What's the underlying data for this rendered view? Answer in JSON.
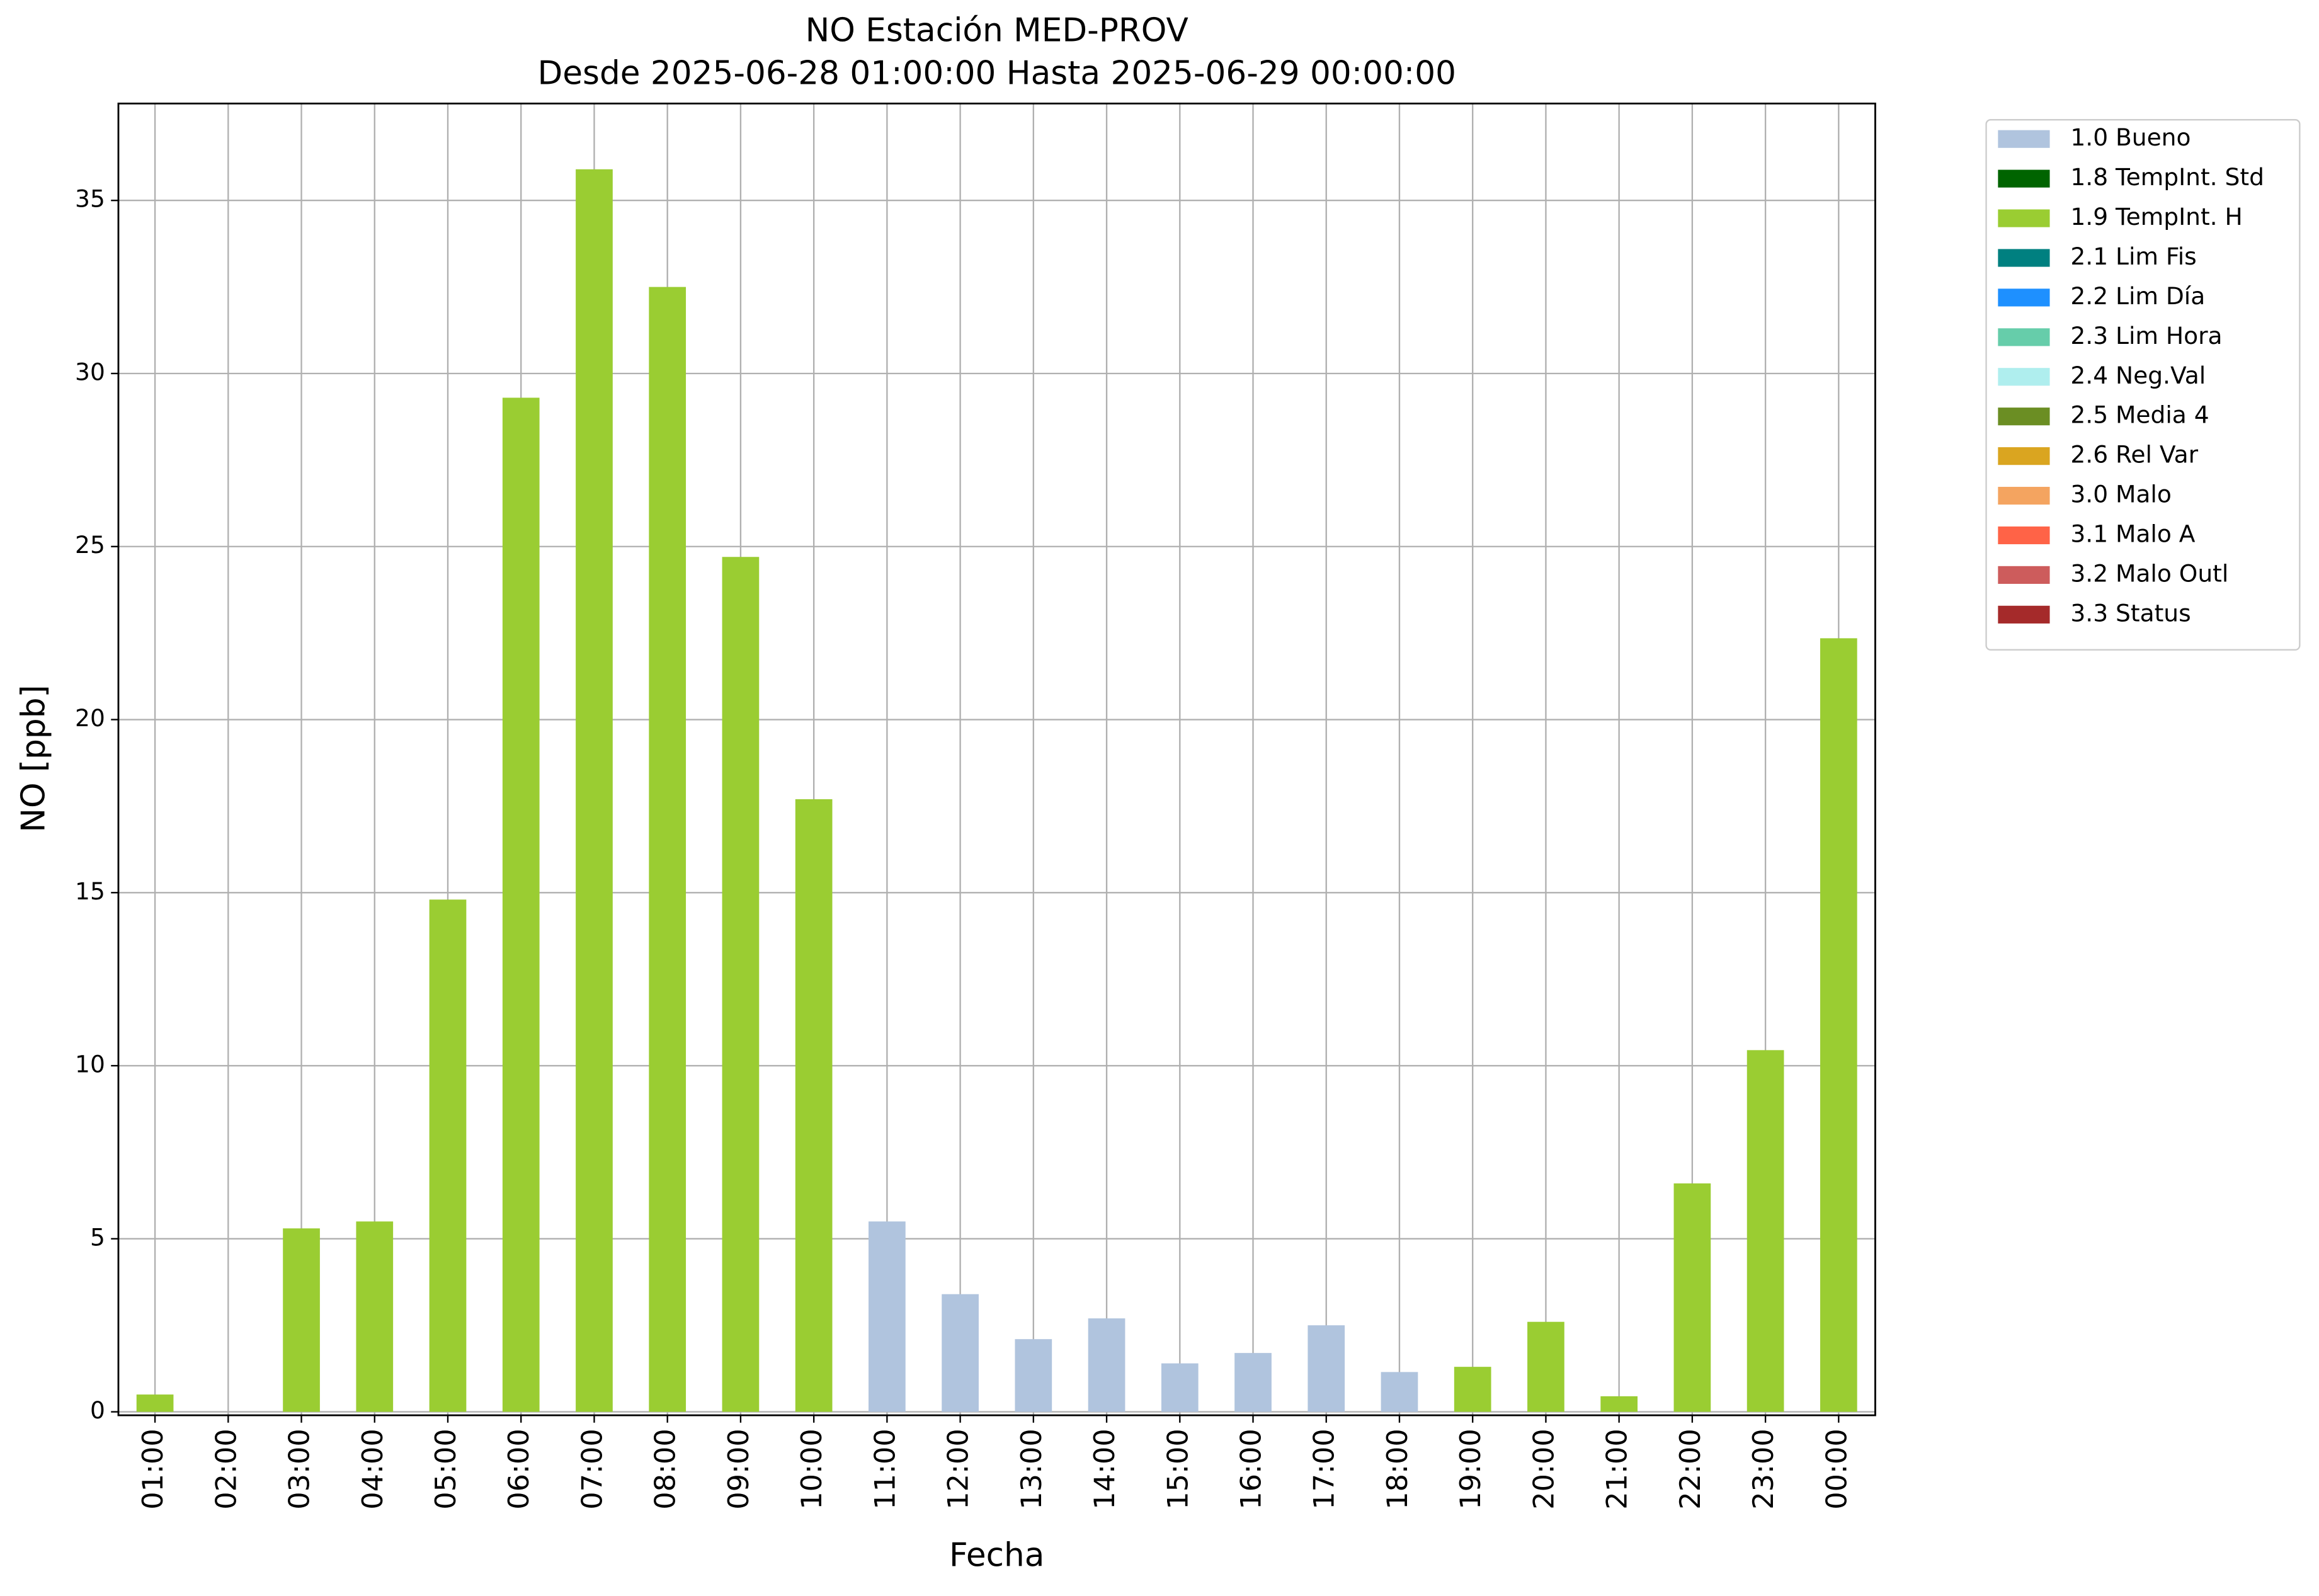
{
  "chart_data": {
    "type": "bar",
    "stacked": true,
    "title": "NO Estación MED-PROV",
    "subtitle": "Desde 2025-06-28 01:00:00 Hasta 2025-06-29 00:00:00",
    "x_label": "Fecha",
    "y_label": "NO [ppb]",
    "categories": [
      "01:00",
      "02:00",
      "03:00",
      "04:00",
      "05:00",
      "06:00",
      "07:00",
      "08:00",
      "09:00",
      "10:00",
      "11:00",
      "12:00",
      "13:00",
      "14:00",
      "15:00",
      "16:00",
      "17:00",
      "18:00",
      "19:00",
      "20:00",
      "21:00",
      "22:00",
      "23:00",
      "00:00"
    ],
    "series": [
      {
        "name": "1.0 Bueno",
        "color": "#b0c4de",
        "values": [
          null,
          null,
          null,
          null,
          null,
          null,
          null,
          null,
          null,
          null,
          5.5,
          3.4,
          2.1,
          2.7,
          1.4,
          1.7,
          2.5,
          1.15,
          null,
          null,
          null,
          null,
          null,
          null
        ]
      },
      {
        "name": "1.8 TempInt. Std",
        "color": "#006400",
        "values": [
          null,
          null,
          null,
          null,
          null,
          null,
          null,
          null,
          null,
          null,
          null,
          null,
          null,
          null,
          null,
          null,
          null,
          null,
          null,
          null,
          null,
          null,
          null,
          null
        ]
      },
      {
        "name": "1.9 TempInt. H",
        "color": "#9acd32",
        "values": [
          0.5,
          0,
          5.3,
          5.5,
          14.8,
          29.3,
          35.9,
          32.5,
          24.7,
          17.7,
          null,
          null,
          null,
          null,
          null,
          null,
          null,
          null,
          1.3,
          2.6,
          0.45,
          6.6,
          10.45,
          22.35
        ]
      },
      {
        "name": "2.1 Lim Fis",
        "color": "#008080",
        "values": [
          null,
          null,
          null,
          null,
          null,
          null,
          null,
          null,
          null,
          null,
          null,
          null,
          null,
          null,
          null,
          null,
          null,
          null,
          null,
          null,
          null,
          null,
          null,
          null
        ]
      },
      {
        "name": "2.2 Lim Día",
        "color": "#1e90ff",
        "values": [
          null,
          null,
          null,
          null,
          null,
          null,
          null,
          null,
          null,
          null,
          null,
          null,
          null,
          null,
          null,
          null,
          null,
          null,
          null,
          null,
          null,
          null,
          null,
          null
        ]
      },
      {
        "name": "2.3 Lim Hora",
        "color": "#66cdaa",
        "values": [
          null,
          null,
          null,
          null,
          null,
          null,
          null,
          null,
          null,
          null,
          null,
          null,
          null,
          null,
          null,
          null,
          null,
          null,
          null,
          null,
          null,
          null,
          null,
          null
        ]
      },
      {
        "name": "2.4 Neg.Val",
        "color": "#afeeee",
        "values": [
          null,
          null,
          null,
          null,
          null,
          null,
          null,
          null,
          null,
          null,
          null,
          null,
          null,
          null,
          null,
          null,
          null,
          null,
          null,
          null,
          null,
          null,
          null,
          null
        ]
      },
      {
        "name": "2.5 Media 4",
        "color": "#6b8e23",
        "values": [
          null,
          null,
          null,
          null,
          null,
          null,
          null,
          null,
          null,
          null,
          null,
          null,
          null,
          null,
          null,
          null,
          null,
          null,
          null,
          null,
          null,
          null,
          null,
          null
        ]
      },
      {
        "name": "2.6 Rel Var",
        "color": "#daa520",
        "values": [
          null,
          null,
          null,
          null,
          null,
          null,
          null,
          null,
          null,
          null,
          null,
          null,
          null,
          null,
          null,
          null,
          null,
          null,
          null,
          null,
          null,
          null,
          null,
          null
        ]
      },
      {
        "name": "3.0 Malo",
        "color": "#f4a460",
        "values": [
          null,
          null,
          null,
          null,
          null,
          null,
          null,
          null,
          null,
          null,
          null,
          null,
          null,
          null,
          null,
          null,
          null,
          null,
          null,
          null,
          null,
          null,
          null,
          null
        ]
      },
      {
        "name": "3.1 Malo A",
        "color": "#ff6347",
        "values": [
          null,
          null,
          null,
          null,
          null,
          null,
          null,
          null,
          null,
          null,
          null,
          null,
          null,
          null,
          null,
          null,
          null,
          null,
          null,
          null,
          null,
          null,
          null,
          null
        ]
      },
      {
        "name": "3.2 Malo Outl",
        "color": "#cd5c5c",
        "values": [
          null,
          null,
          null,
          null,
          null,
          null,
          null,
          null,
          null,
          null,
          null,
          null,
          null,
          null,
          null,
          null,
          null,
          null,
          null,
          null,
          null,
          null,
          null,
          null
        ]
      },
      {
        "name": "3.3 Status",
        "color": "#a52a2a",
        "values": [
          null,
          null,
          null,
          null,
          null,
          null,
          null,
          null,
          null,
          null,
          null,
          null,
          null,
          null,
          null,
          null,
          null,
          null,
          null,
          null,
          null,
          null,
          null,
          null
        ]
      }
    ],
    "ylim": [
      -0.1,
      37.8
    ],
    "yticks": [
      0,
      5,
      10,
      15,
      20,
      25,
      30,
      35
    ],
    "grid": true,
    "legend": "outside-right"
  }
}
